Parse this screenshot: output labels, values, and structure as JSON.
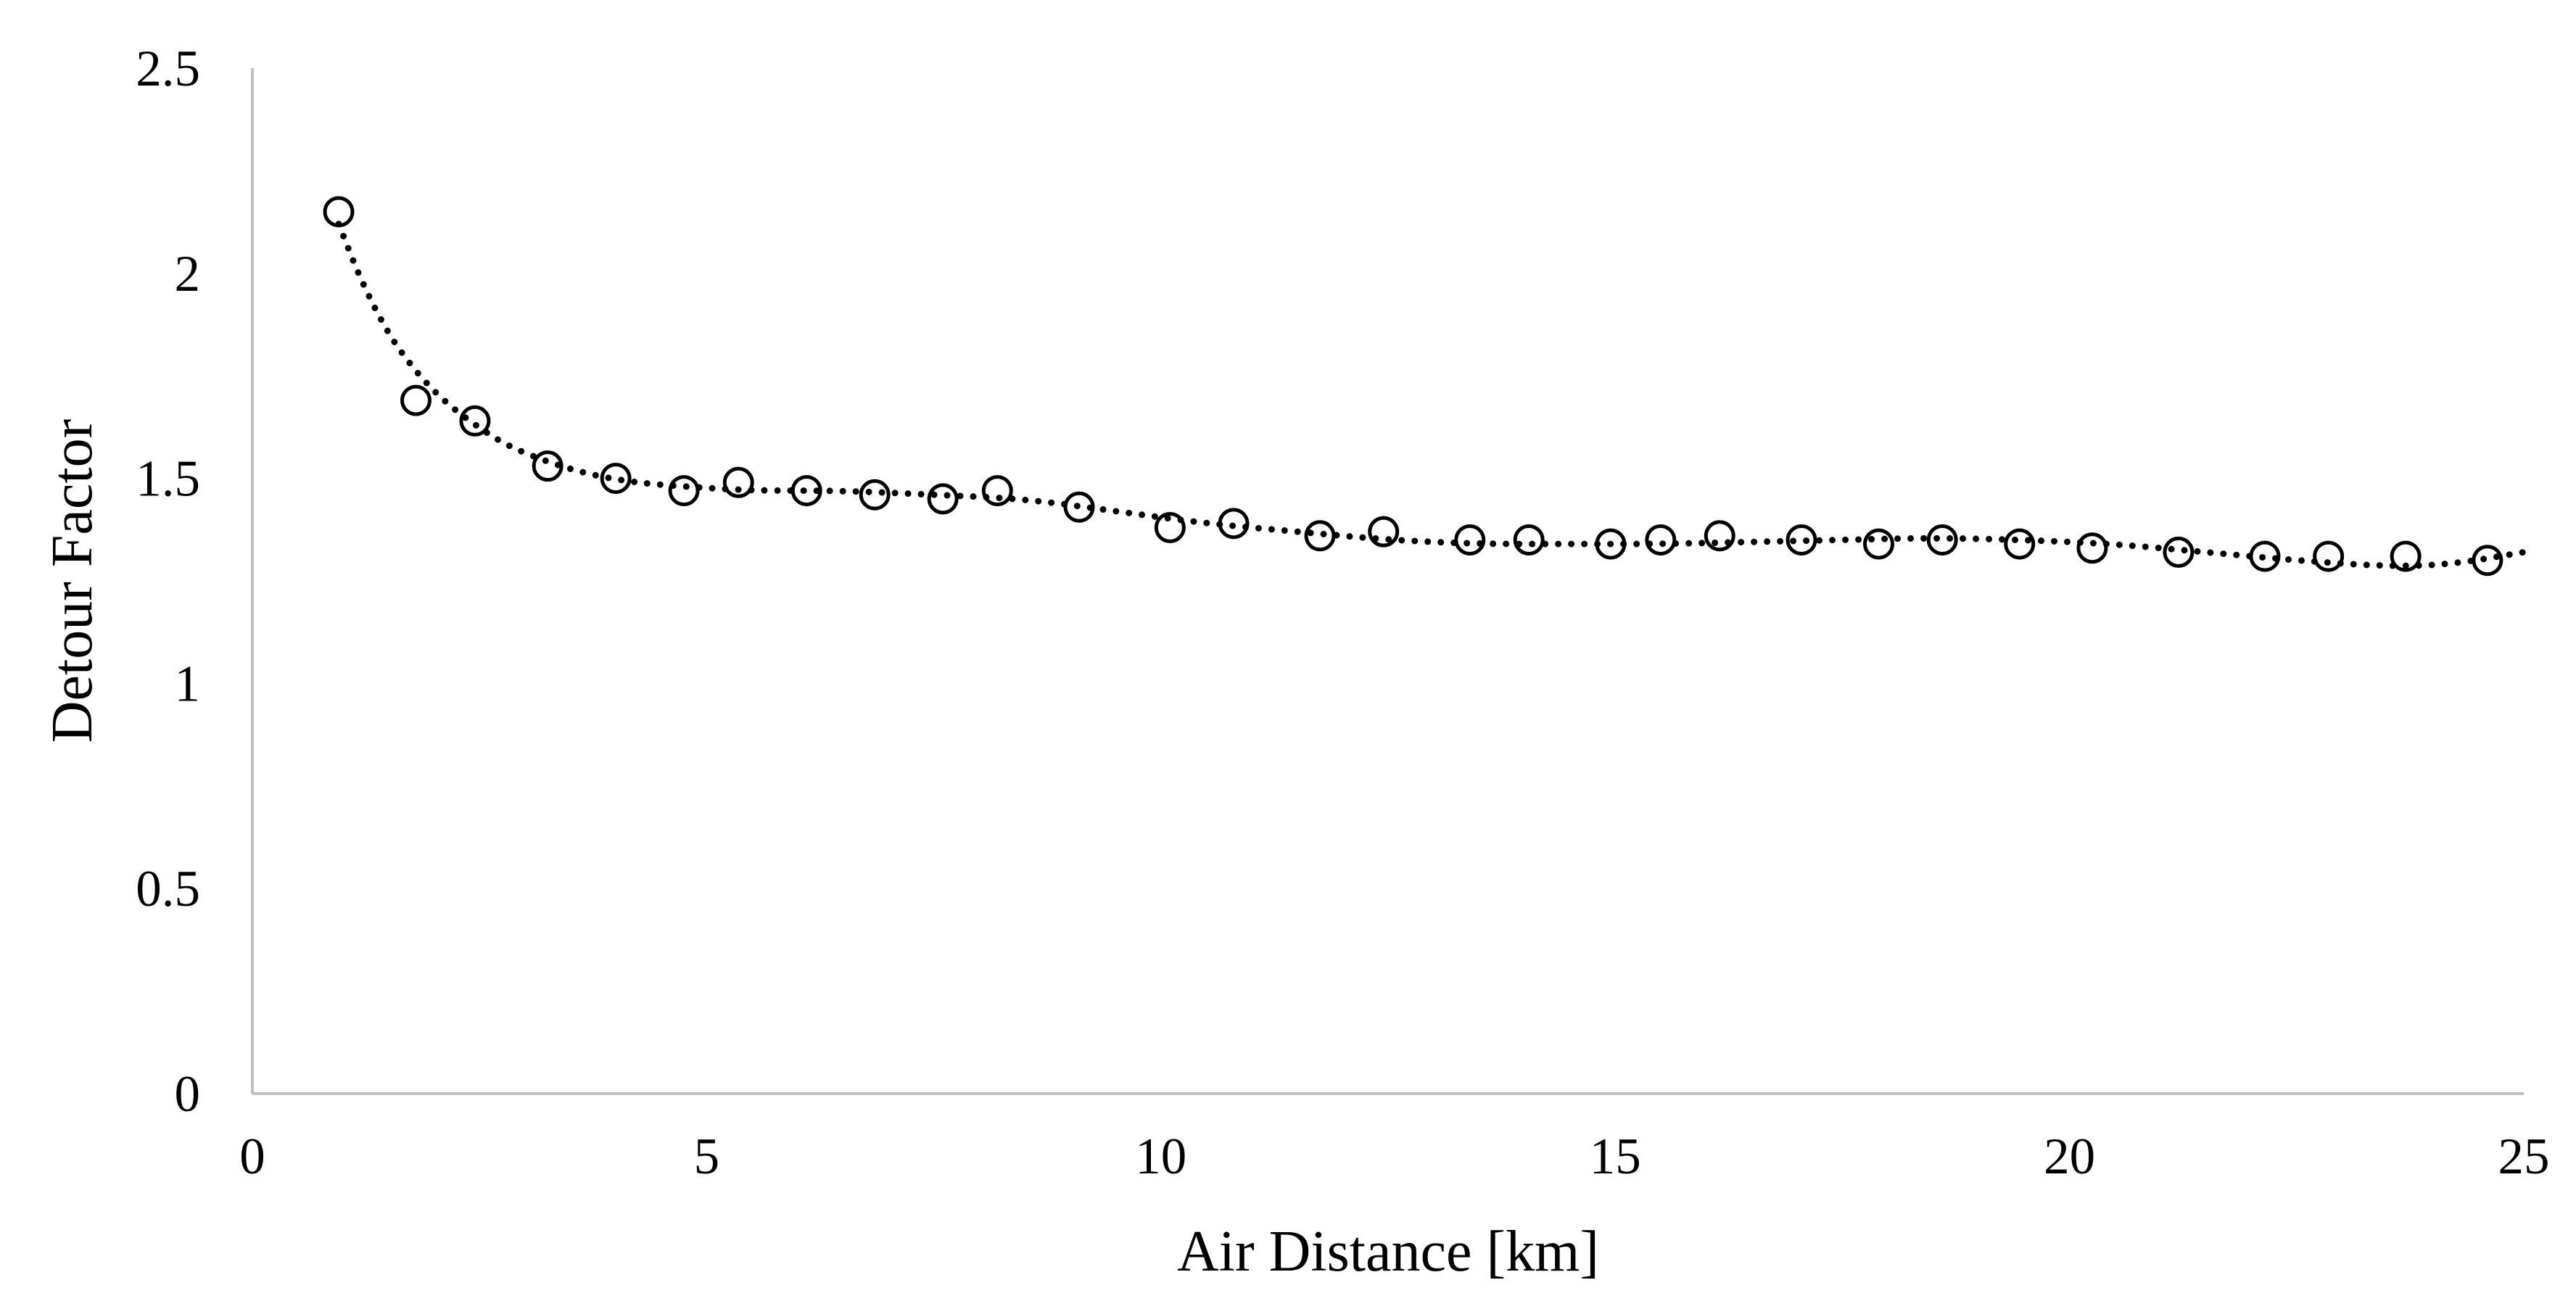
{
  "chart_data": {
    "type": "scatter",
    "title": "",
    "xlabel": "Air Distance [km]",
    "ylabel": "Detour Factor",
    "xlim": [
      0,
      25
    ],
    "ylim": [
      0,
      2.5
    ],
    "x_ticks": [
      "0",
      "5",
      "10",
      "15",
      "20",
      "25"
    ],
    "y_ticks": [
      "0",
      "0.5",
      "1",
      "1.5",
      "2",
      "2.5"
    ],
    "grid": false,
    "legend": "none",
    "series": [
      {
        "marker": "open-circle",
        "color": "#000000",
        "points": [
          [
            0.95,
            2.15
          ],
          [
            1.8,
            1.69
          ],
          [
            2.45,
            1.64
          ],
          [
            3.25,
            1.53
          ],
          [
            4.0,
            1.5
          ],
          [
            4.75,
            1.47
          ],
          [
            5.35,
            1.49
          ],
          [
            6.1,
            1.47
          ],
          [
            6.85,
            1.46
          ],
          [
            7.6,
            1.45
          ],
          [
            8.2,
            1.47
          ],
          [
            9.1,
            1.43
          ],
          [
            10.1,
            1.38
          ],
          [
            10.8,
            1.39
          ],
          [
            11.75,
            1.36
          ],
          [
            12.45,
            1.37
          ],
          [
            13.4,
            1.35
          ],
          [
            14.05,
            1.35
          ],
          [
            14.95,
            1.34
          ],
          [
            15.5,
            1.35
          ],
          [
            16.15,
            1.36
          ],
          [
            17.05,
            1.35
          ],
          [
            17.9,
            1.34
          ],
          [
            18.6,
            1.35
          ],
          [
            19.45,
            1.34
          ],
          [
            20.25,
            1.33
          ],
          [
            21.2,
            1.32
          ],
          [
            22.15,
            1.31
          ],
          [
            22.85,
            1.31
          ],
          [
            23.7,
            1.31
          ],
          [
            24.6,
            1.3
          ]
        ]
      },
      {
        "style": "dotted-line",
        "color": "#000000",
        "points": [
          [
            0.95,
            2.12
          ],
          [
            1.2,
            1.98
          ],
          [
            1.5,
            1.85
          ],
          [
            1.8,
            1.76
          ],
          [
            2.1,
            1.69
          ],
          [
            2.45,
            1.63
          ],
          [
            2.8,
            1.58
          ],
          [
            3.25,
            1.54
          ],
          [
            3.7,
            1.51
          ],
          [
            4.2,
            1.49
          ],
          [
            4.75,
            1.48
          ],
          [
            5.5,
            1.47
          ],
          [
            6.5,
            1.47
          ],
          [
            7.5,
            1.46
          ],
          [
            8.5,
            1.45
          ],
          [
            9.5,
            1.42
          ],
          [
            10.5,
            1.39
          ],
          [
            11.5,
            1.37
          ],
          [
            12.5,
            1.35
          ],
          [
            13.5,
            1.34
          ],
          [
            14.5,
            1.34
          ],
          [
            15.5,
            1.34
          ],
          [
            16.5,
            1.345
          ],
          [
            17.5,
            1.35
          ],
          [
            18.5,
            1.355
          ],
          [
            19.5,
            1.35
          ],
          [
            20.5,
            1.34
          ],
          [
            21.5,
            1.32
          ],
          [
            22.5,
            1.3
          ],
          [
            23.5,
            1.285
          ],
          [
            24.2,
            1.29
          ],
          [
            25.0,
            1.32
          ]
        ]
      }
    ]
  }
}
